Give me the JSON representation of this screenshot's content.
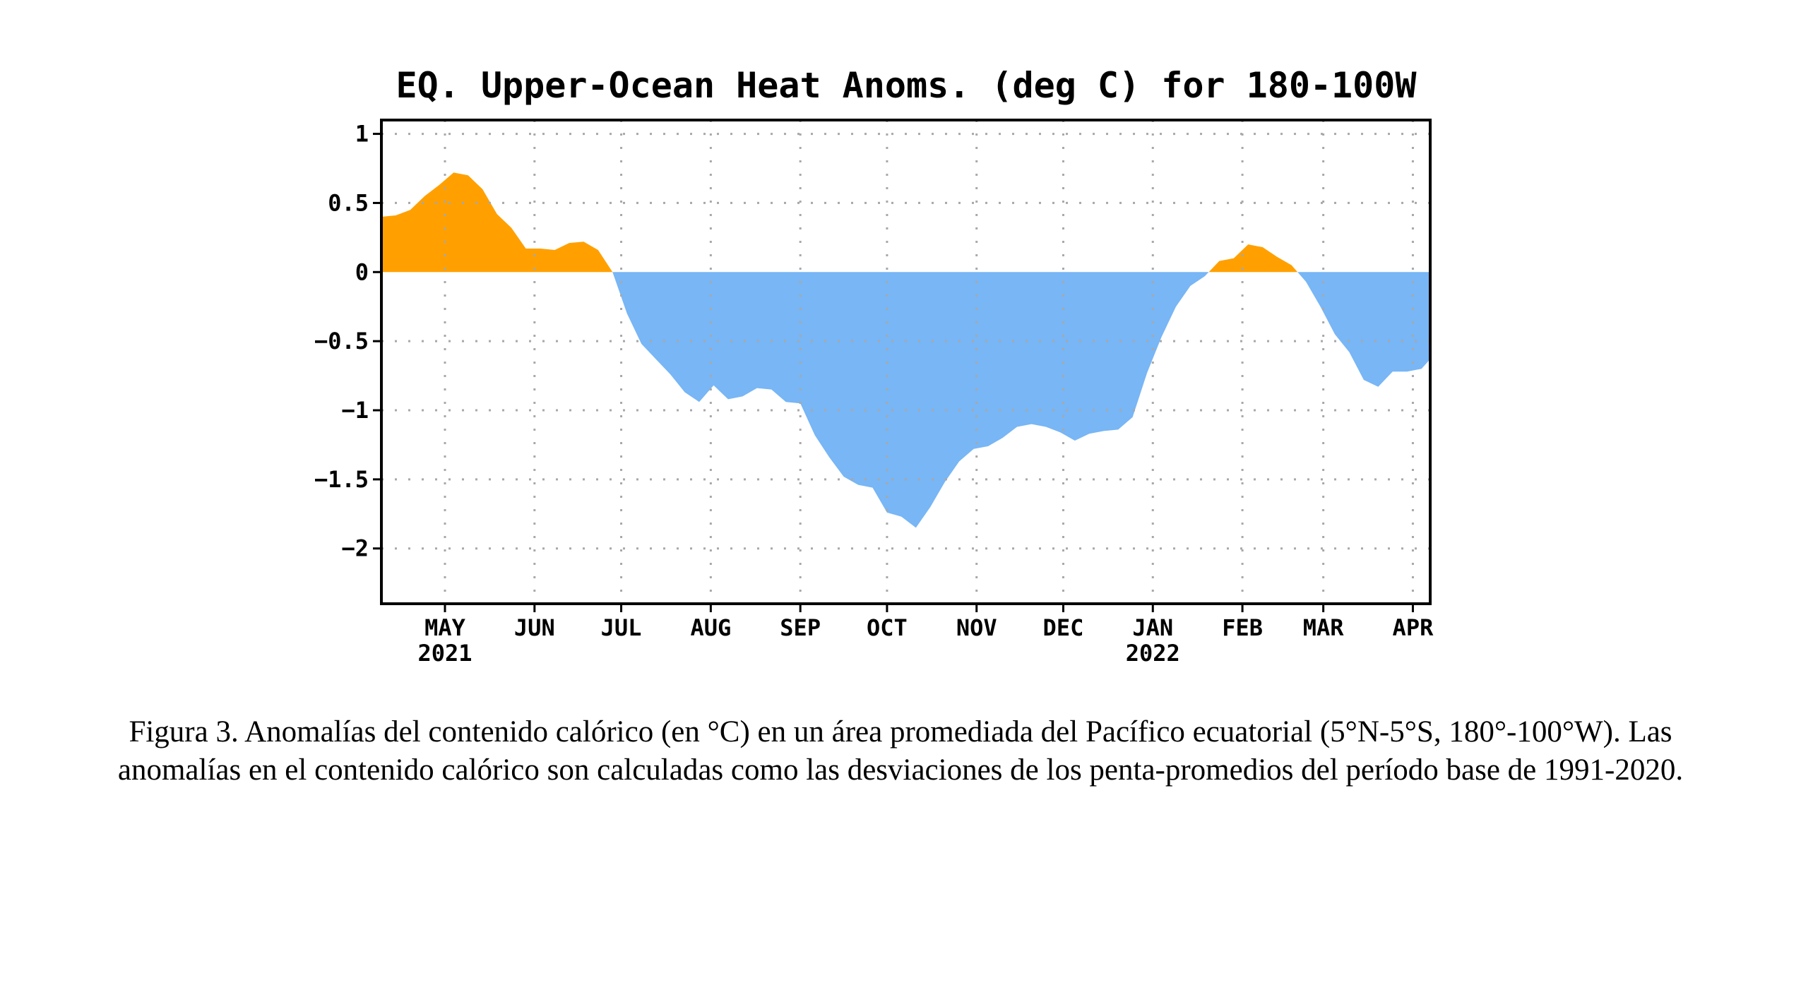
{
  "caption": "Figura 3. Anomalías del contenido calórico (en °C) en un área promediada del Pacífico ecuatorial (5°N-5°S, 180°-100°W). Las anomalías en el contenido calórico son calculadas como las desviaciones de los penta-promedios del período base de 1991-2020.",
  "chart_data": {
    "type": "area",
    "title": "EQ. Upper-Ocean Heat Anoms. (deg C) for 180-100W",
    "xlabel": "",
    "ylabel": "",
    "ylim": [
      -2.4,
      1.1
    ],
    "yticks": [
      1,
      0.5,
      0,
      -0.5,
      -1,
      -1.5,
      -2
    ],
    "ytick_labels": [
      "1",
      "0.5",
      "0",
      "−0.5",
      "−1",
      "−1.5",
      "−2"
    ],
    "xlim": [
      "2021-04-09",
      "2022-04-07"
    ],
    "xticks": [
      {
        "date": "2021-05-01",
        "label": "MAY",
        "year": "2021"
      },
      {
        "date": "2021-06-01",
        "label": "JUN",
        "year": ""
      },
      {
        "date": "2021-07-01",
        "label": "JUL",
        "year": ""
      },
      {
        "date": "2021-08-01",
        "label": "AUG",
        "year": ""
      },
      {
        "date": "2021-09-01",
        "label": "SEP",
        "year": ""
      },
      {
        "date": "2021-10-01",
        "label": "OCT",
        "year": ""
      },
      {
        "date": "2021-11-01",
        "label": "NOV",
        "year": ""
      },
      {
        "date": "2021-12-01",
        "label": "DEC",
        "year": ""
      },
      {
        "date": "2022-01-01",
        "label": "JAN",
        "year": "2022"
      },
      {
        "date": "2022-02-01",
        "label": "FEB",
        "year": ""
      },
      {
        "date": "2022-03-01",
        "label": "MAR",
        "year": ""
      },
      {
        "date": "2022-04-01",
        "label": "APR",
        "year": ""
      }
    ],
    "grid": true,
    "colors": {
      "positive": "#ffa000",
      "negative": "#78b6f5"
    },
    "x": [
      "2021-04-09",
      "2021-04-14",
      "2021-04-19",
      "2021-04-24",
      "2021-04-29",
      "2021-05-04",
      "2021-05-09",
      "2021-05-14",
      "2021-05-19",
      "2021-05-24",
      "2021-05-29",
      "2021-06-03",
      "2021-06-08",
      "2021-06-13",
      "2021-06-18",
      "2021-06-23",
      "2021-06-28",
      "2021-07-03",
      "2021-07-08",
      "2021-07-13",
      "2021-07-18",
      "2021-07-23",
      "2021-07-28",
      "2021-08-02",
      "2021-08-07",
      "2021-08-12",
      "2021-08-17",
      "2021-08-22",
      "2021-08-27",
      "2021-09-01",
      "2021-09-06",
      "2021-09-11",
      "2021-09-16",
      "2021-09-21",
      "2021-09-26",
      "2021-10-01",
      "2021-10-06",
      "2021-10-11",
      "2021-10-16",
      "2021-10-21",
      "2021-10-26",
      "2021-10-31",
      "2021-11-05",
      "2021-11-10",
      "2021-11-15",
      "2021-11-20",
      "2021-11-25",
      "2021-11-30",
      "2021-12-05",
      "2021-12-10",
      "2021-12-15",
      "2021-12-20",
      "2021-12-25",
      "2021-12-30",
      "2022-01-04",
      "2022-01-09",
      "2022-01-14",
      "2022-01-19",
      "2022-01-24",
      "2022-01-29",
      "2022-02-03",
      "2022-02-08",
      "2022-02-13",
      "2022-02-18",
      "2022-02-23",
      "2022-02-28",
      "2022-03-05",
      "2022-03-10",
      "2022-03-15",
      "2022-03-20",
      "2022-03-25",
      "2022-03-30",
      "2022-04-04",
      "2022-04-07"
    ],
    "values": [
      0.4,
      0.41,
      0.45,
      0.55,
      0.63,
      0.72,
      0.7,
      0.6,
      0.42,
      0.32,
      0.17,
      0.17,
      0.16,
      0.21,
      0.22,
      0.16,
      0.0,
      -0.3,
      -0.52,
      -0.63,
      -0.74,
      -0.87,
      -0.94,
      -0.82,
      -0.92,
      -0.9,
      -0.84,
      -0.85,
      -0.94,
      -0.95,
      -1.18,
      -1.34,
      -1.48,
      -1.54,
      -1.56,
      -1.74,
      -1.77,
      -1.85,
      -1.7,
      -1.52,
      -1.37,
      -1.28,
      -1.26,
      -1.2,
      -1.12,
      -1.1,
      -1.12,
      -1.16,
      -1.22,
      -1.17,
      -1.15,
      -1.14,
      -1.05,
      -0.73,
      -0.47,
      -0.25,
      -0.1,
      -0.03,
      0.08,
      0.1,
      0.2,
      0.18,
      0.11,
      0.05,
      -0.07,
      -0.25,
      -0.45,
      -0.58,
      -0.78,
      -0.83,
      -0.72,
      -0.72,
      -0.7,
      -0.63
    ]
  }
}
